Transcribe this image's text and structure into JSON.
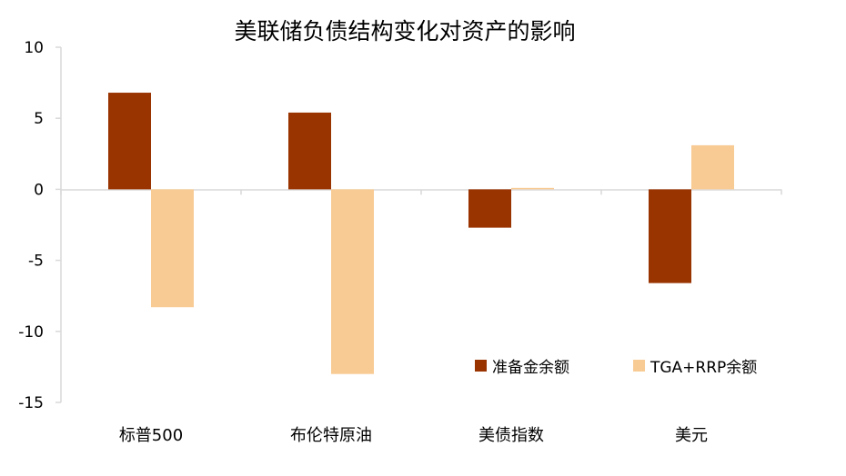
{
  "chart_data": {
    "type": "bar",
    "title": "美联储负债结构变化对资产的影响",
    "categories": [
      "标普500",
      "布伦特原油",
      "美债指数",
      "美元"
    ],
    "series": [
      {
        "name": "准备金余额",
        "color": "#993300",
        "values": [
          6.8,
          5.4,
          -2.7,
          -6.6
        ]
      },
      {
        "name": "TGA+RRP余额",
        "color": "#F8CB94",
        "values": [
          -8.3,
          -13.0,
          0.1,
          3.1
        ]
      }
    ],
    "ylim": [
      -15,
      10
    ],
    "yticks": [
      10,
      5,
      0,
      -5,
      -10,
      -15
    ],
    "grid": false,
    "legend_position": "bottom-right"
  }
}
